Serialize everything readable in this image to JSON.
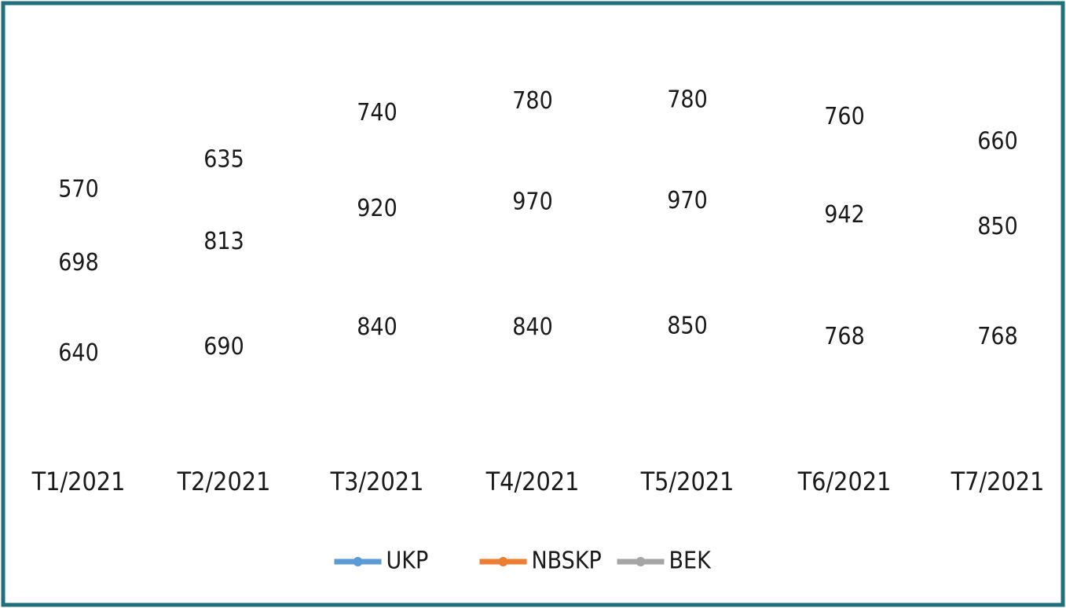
{
  "chart_data": {
    "type": "stacked-line",
    "categories": [
      "T1/2021",
      "T2/2021",
      "T3/2021",
      "T4/2021",
      "T5/2021",
      "T6/2021",
      "T7/2021"
    ],
    "series": [
      {
        "name": "UKP",
        "color": "#5b9bd5",
        "values": [
          640,
          690,
          840,
          840,
          850,
          768,
          768
        ]
      },
      {
        "name": "NBSKP",
        "color": "#ed7d31",
        "values": [
          698,
          813,
          920,
          970,
          970,
          942,
          850
        ]
      },
      {
        "name": "BEK",
        "color": "#a5a5a5",
        "values": [
          570,
          635,
          740,
          780,
          780,
          760,
          660
        ]
      }
    ],
    "legend": "bottom"
  }
}
